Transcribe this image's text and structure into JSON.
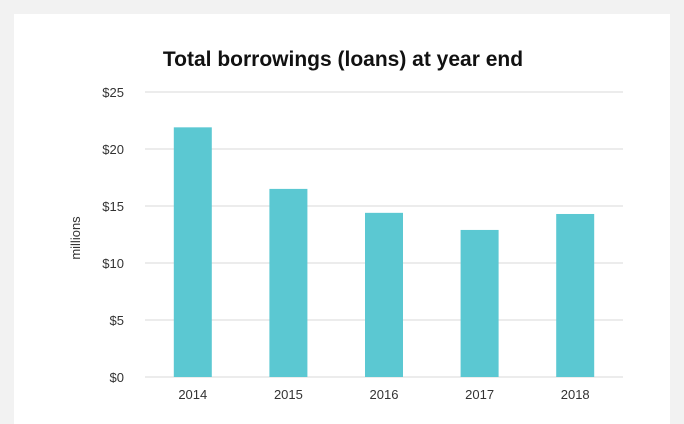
{
  "chart_data": {
    "type": "bar",
    "title": "Total borrowings (loans) at year end",
    "xlabel": "",
    "ylabel": "millions",
    "categories": [
      "2014",
      "2015",
      "2016",
      "2017",
      "2018"
    ],
    "values": [
      21.9,
      16.5,
      14.4,
      12.9,
      14.3
    ],
    "ylim": [
      0,
      25
    ],
    "yticks": [
      0,
      5,
      10,
      15,
      20,
      25
    ],
    "ytick_labels": [
      "$0",
      "$5",
      "$10",
      "$15",
      "$20",
      "$25"
    ],
    "grid": true,
    "legend": "none",
    "bar_color": "#5bc8d2",
    "grid_color": "#d9d9d9"
  }
}
